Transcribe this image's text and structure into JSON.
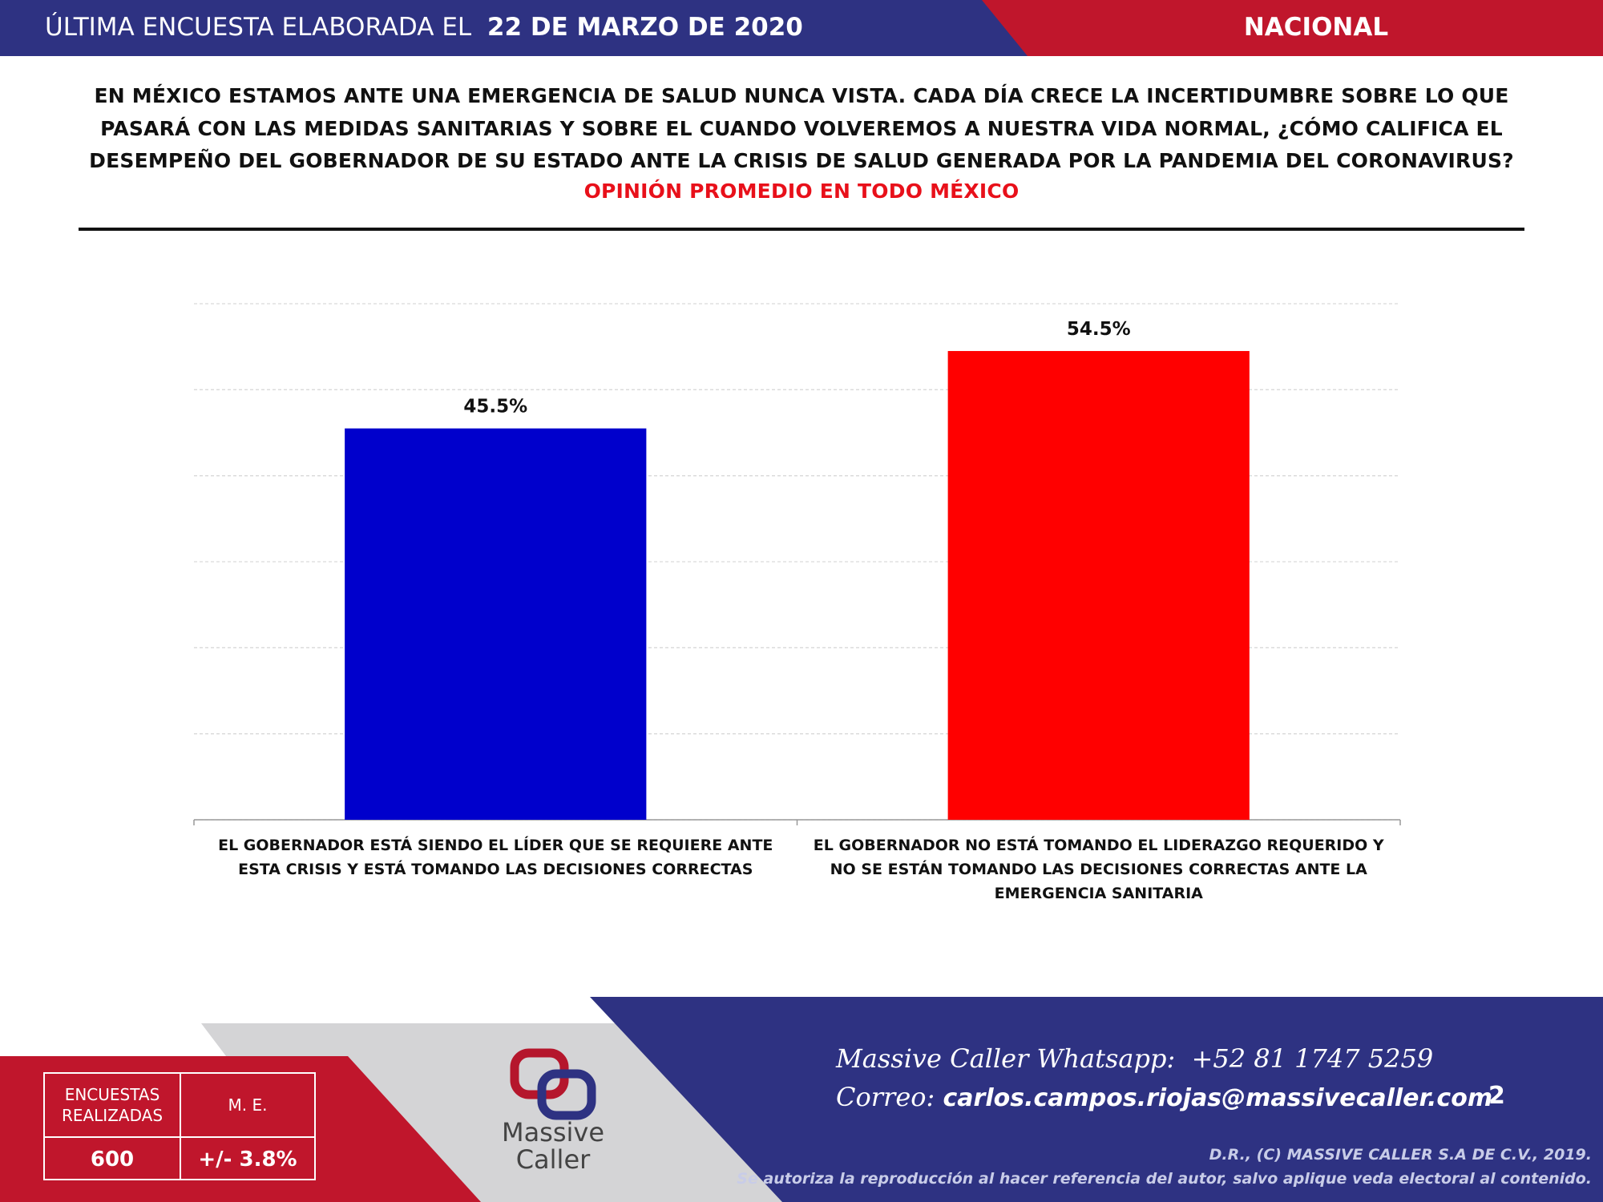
{
  "header": {
    "prefix": "ÚLTIMA ENCUESTA ELABORADA EL",
    "date": "22 DE MARZO DE 2020",
    "scope": "NACIONAL"
  },
  "question": {
    "lines": [
      "EN MÉXICO ESTAMOS ANTE UNA EMERGENCIA DE SALUD NUNCA VISTA. CADA DÍA CRECE LA INCERTIDUMBRE SOBRE LO QUE",
      "PASARÁ CON LAS MEDIDAS SANITARIAS Y SOBRE EL CUANDO VOLVEREMOS A NUESTRA VIDA NORMAL, ¿CÓMO CALIFICA EL",
      "DESEMPEÑO DEL GOBERNADOR DE SU ESTADO ANTE LA CRISIS DE SALUD GENERADA POR LA PANDEMIA DEL CORONAVIRUS?"
    ],
    "subtitle": "OPINIÓN PROMEDIO EN TODO MÉXICO"
  },
  "chart_data": {
    "type": "bar",
    "categories": [
      "EL GOBERNADOR ESTÁ SIENDO EL LÍDER QUE SE REQUIERE ANTE ESTA CRISIS Y ESTÁ TOMANDO LAS DECISIONES CORRECTAS",
      "EL GOBERNADOR NO ESTÁ TOMANDO EL LIDERAZGO REQUERIDO Y NO SE ESTÁN TOMANDO LAS DECISIONES CORRECTAS ANTE LA EMERGENCIA SANITARIA"
    ],
    "values": [
      45.5,
      54.5
    ],
    "value_labels": [
      "45.5%",
      "54.5%"
    ],
    "colors": [
      "#0000cc",
      "#ff0000"
    ],
    "ylim": [
      0,
      60
    ],
    "yticks": [
      0,
      10,
      20,
      30,
      40,
      50,
      60
    ],
    "grid": true
  },
  "stats": {
    "surveys_label": "ENCUESTAS REALIZADAS",
    "surveys": "600",
    "me_label": "M. E.",
    "me": "+/- 3.8%"
  },
  "logo": {
    "line1": "Massive",
    "line2": "Caller"
  },
  "contact": {
    "whatsapp_label": "Massive Caller Whatsapp:",
    "whatsapp": "+52 81 1747 5259",
    "email_label": "Correo:",
    "email": "carlos.campos.riojas@massivecaller.com",
    "page": "2"
  },
  "legal": {
    "line1": "D.R., (C) MASSIVE CALLER S.A DE C.V., 2019.",
    "line2": "Se autoriza la reproducción al hacer referencia del autor, salvo aplique veda electoral al contenido."
  }
}
